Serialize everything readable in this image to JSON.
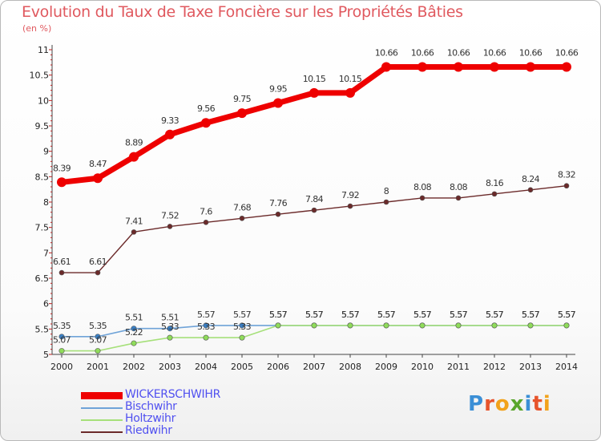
{
  "title": "Evolution du Taux de Taxe Foncière sur les Propriétés Bâties",
  "unit_label": "(en %)",
  "brand": {
    "text": "Proxiti",
    "letters": [
      "P",
      "r",
      "o",
      "x",
      "i",
      "t",
      "i"
    ],
    "colors": [
      "#3b8fd6",
      "#e7542c",
      "#f2a21b",
      "#5aa62c",
      "#3b8fd6",
      "#e7542c",
      "#f2a21b"
    ]
  },
  "chart_data": {
    "type": "line",
    "title": "Evolution du Taux de Taxe Foncière sur les Propriétés Bâties",
    "ylabel": "(en %)",
    "xlabel": "",
    "ylim": [
      5,
      11
    ],
    "yticks": [
      "5",
      "5.5",
      "6",
      "6.5",
      "7",
      "7.5",
      "8",
      "8.5",
      "9",
      "9.5",
      "10",
      "10.5",
      "11"
    ],
    "x": [
      "2000",
      "2001",
      "2002",
      "2003",
      "2004",
      "2005",
      "2006",
      "2007",
      "2008",
      "2009",
      "2010",
      "2011",
      "2012",
      "2013",
      "2014"
    ],
    "series": [
      {
        "name": "WICKERSCHWIHR",
        "color": "#ee0000",
        "label_color": "#5050f0",
        "values": [
          8.39,
          8.47,
          8.89,
          9.33,
          9.56,
          9.75,
          9.95,
          10.15,
          10.15,
          10.66,
          10.66,
          10.66,
          10.66,
          10.66,
          10.66
        ],
        "labels": [
          "8.39",
          "8.47",
          "8.89",
          "9.33",
          "9.56",
          "9.75",
          "9.95",
          "10.15",
          "10.15",
          "10.66",
          "10.66",
          "10.66",
          "10.66",
          "10.66",
          "10.66"
        ]
      },
      {
        "name": "Bischwihr",
        "color": "#6fa3d8",
        "label_color": "#5050f0",
        "values": [
          5.35,
          5.35,
          5.51,
          5.51,
          5.57,
          5.57,
          5.57,
          5.57,
          5.57,
          5.57,
          5.57,
          5.57,
          5.57,
          5.57,
          5.57
        ],
        "labels": [
          "5.35",
          "5.35",
          "5.51",
          "5.51",
          "5.57",
          "5.57",
          "5.57",
          "5.57",
          "5.57",
          "5.57",
          "5.57",
          "5.57",
          "5.57",
          "5.57",
          "5.57"
        ]
      },
      {
        "name": "Holtzwihr",
        "color": "#a6e07a",
        "label_color": "#5050f0",
        "values": [
          5.07,
          5.07,
          5.22,
          5.33,
          5.33,
          5.33,
          5.57,
          5.57,
          5.57,
          5.57,
          5.57,
          5.57,
          5.57,
          5.57,
          5.57
        ],
        "labels": [
          "5.07",
          "5.07",
          "5.22",
          "5.33",
          "5.33",
          "5.33",
          "5.57",
          "5.57",
          "5.57",
          "5.57",
          "5.57",
          "5.57",
          "5.57",
          "5.57",
          "5.57"
        ]
      },
      {
        "name": "Riedwihr",
        "color": "#6b2a2a",
        "label_color": "#5050f0",
        "values": [
          6.61,
          6.61,
          7.41,
          7.52,
          7.6,
          7.68,
          7.76,
          7.84,
          7.92,
          8,
          8.08,
          8.08,
          8.16,
          8.24,
          8.32
        ],
        "labels": [
          "6.61",
          "6.61",
          "7.41",
          "7.52",
          "7.6",
          "7.68",
          "7.76",
          "7.84",
          "7.92",
          "8",
          "8.08",
          "8.08",
          "8.16",
          "8.24",
          "8.32"
        ]
      }
    ],
    "legend": "bottom-left",
    "grid": false
  }
}
